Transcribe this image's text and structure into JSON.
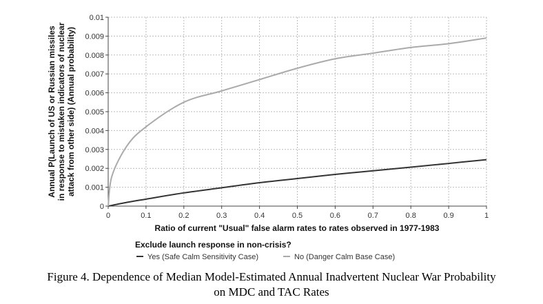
{
  "chart_data": {
    "type": "line",
    "xlabel": "Ratio of current \"Usual\" false alarm rates to rates observed in 1977-1983",
    "ylabel_lines": [
      "Annual P(Launch of US or Russian missiles",
      "in response to mistaken indicators of nuclear",
      "attack from other side) (Annual probability)"
    ],
    "xlim": [
      0,
      1
    ],
    "ylim": [
      0,
      0.01
    ],
    "x_ticks": [
      "0",
      "0.1",
      "0.2",
      "0.3",
      "0.4",
      "0.5",
      "0.6",
      "0.7",
      "0.8",
      "0.9",
      "1"
    ],
    "y_ticks": [
      "0",
      "0.001",
      "0.002",
      "0.003",
      "0.004",
      "0.005",
      "0.006",
      "0.007",
      "0.008",
      "0.009",
      "0.01"
    ],
    "grid": true,
    "legend": {
      "title": "Exclude launch response in non-crisis?",
      "placement": "bottom"
    },
    "series": [
      {
        "name": "Yes (Safe Calm Sensitivity Case)",
        "color": "#333333",
        "x": [
          0,
          0.05,
          0.1,
          0.2,
          0.3,
          0.4,
          0.5,
          0.6,
          0.7,
          0.8,
          0.9,
          1.0
        ],
        "y": [
          0,
          0.0002,
          0.00037,
          0.0007,
          0.00097,
          0.00124,
          0.00146,
          0.00168,
          0.00187,
          0.00206,
          0.00226,
          0.00246
        ]
      },
      {
        "name": "No (Danger Calm Base Case)",
        "color": "#aaaaaa",
        "x": [
          0,
          0.01,
          0.05,
          0.1,
          0.2,
          0.3,
          0.4,
          0.5,
          0.6,
          0.7,
          0.8,
          0.9,
          1.0
        ],
        "y": [
          0,
          0.0016,
          0.0032,
          0.0042,
          0.0055,
          0.0061,
          0.0067,
          0.0073,
          0.0078,
          0.0081,
          0.0084,
          0.0086,
          0.0089
        ]
      }
    ]
  },
  "caption": {
    "line1": "Figure 4. Dependence of Median Model-Estimated Annual Inadvertent Nuclear War Probability",
    "line2": "on MDC and TAC Rates"
  }
}
